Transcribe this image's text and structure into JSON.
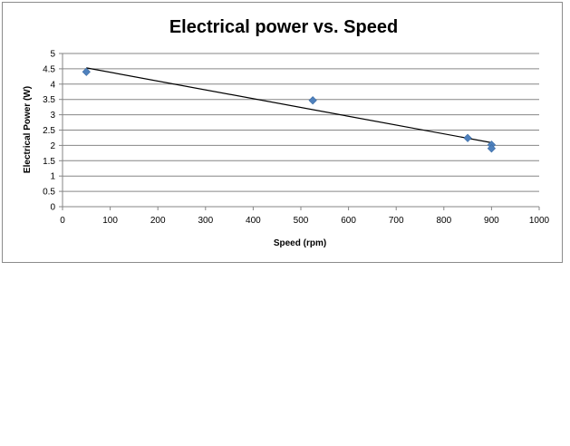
{
  "chart_data": {
    "type": "scatter",
    "title": "Electrical power vs. Speed",
    "xlabel": "Speed (rpm)",
    "ylabel": "Electrical Power (W)",
    "xlim": [
      0,
      1000
    ],
    "ylim": [
      0,
      5
    ],
    "xticks": [
      0,
      100,
      200,
      300,
      400,
      500,
      600,
      700,
      800,
      900,
      1000
    ],
    "yticks": [
      0,
      0.5,
      1,
      1.5,
      2,
      2.5,
      3,
      3.5,
      4,
      4.5,
      5
    ],
    "grid": "horizontal",
    "marker_color": "#4f81bd",
    "trendline_color": "#000000",
    "series": [
      {
        "points": [
          {
            "x": 50,
            "y": 4.4
          },
          {
            "x": 525,
            "y": 3.47
          },
          {
            "x": 850,
            "y": 2.24
          },
          {
            "x": 900,
            "y": 2.02
          },
          {
            "x": 900,
            "y": 1.9
          }
        ]
      }
    ],
    "trendline": {
      "type": "linear",
      "x": [
        50,
        900
      ],
      "y": [
        4.53,
        2.09
      ]
    }
  }
}
